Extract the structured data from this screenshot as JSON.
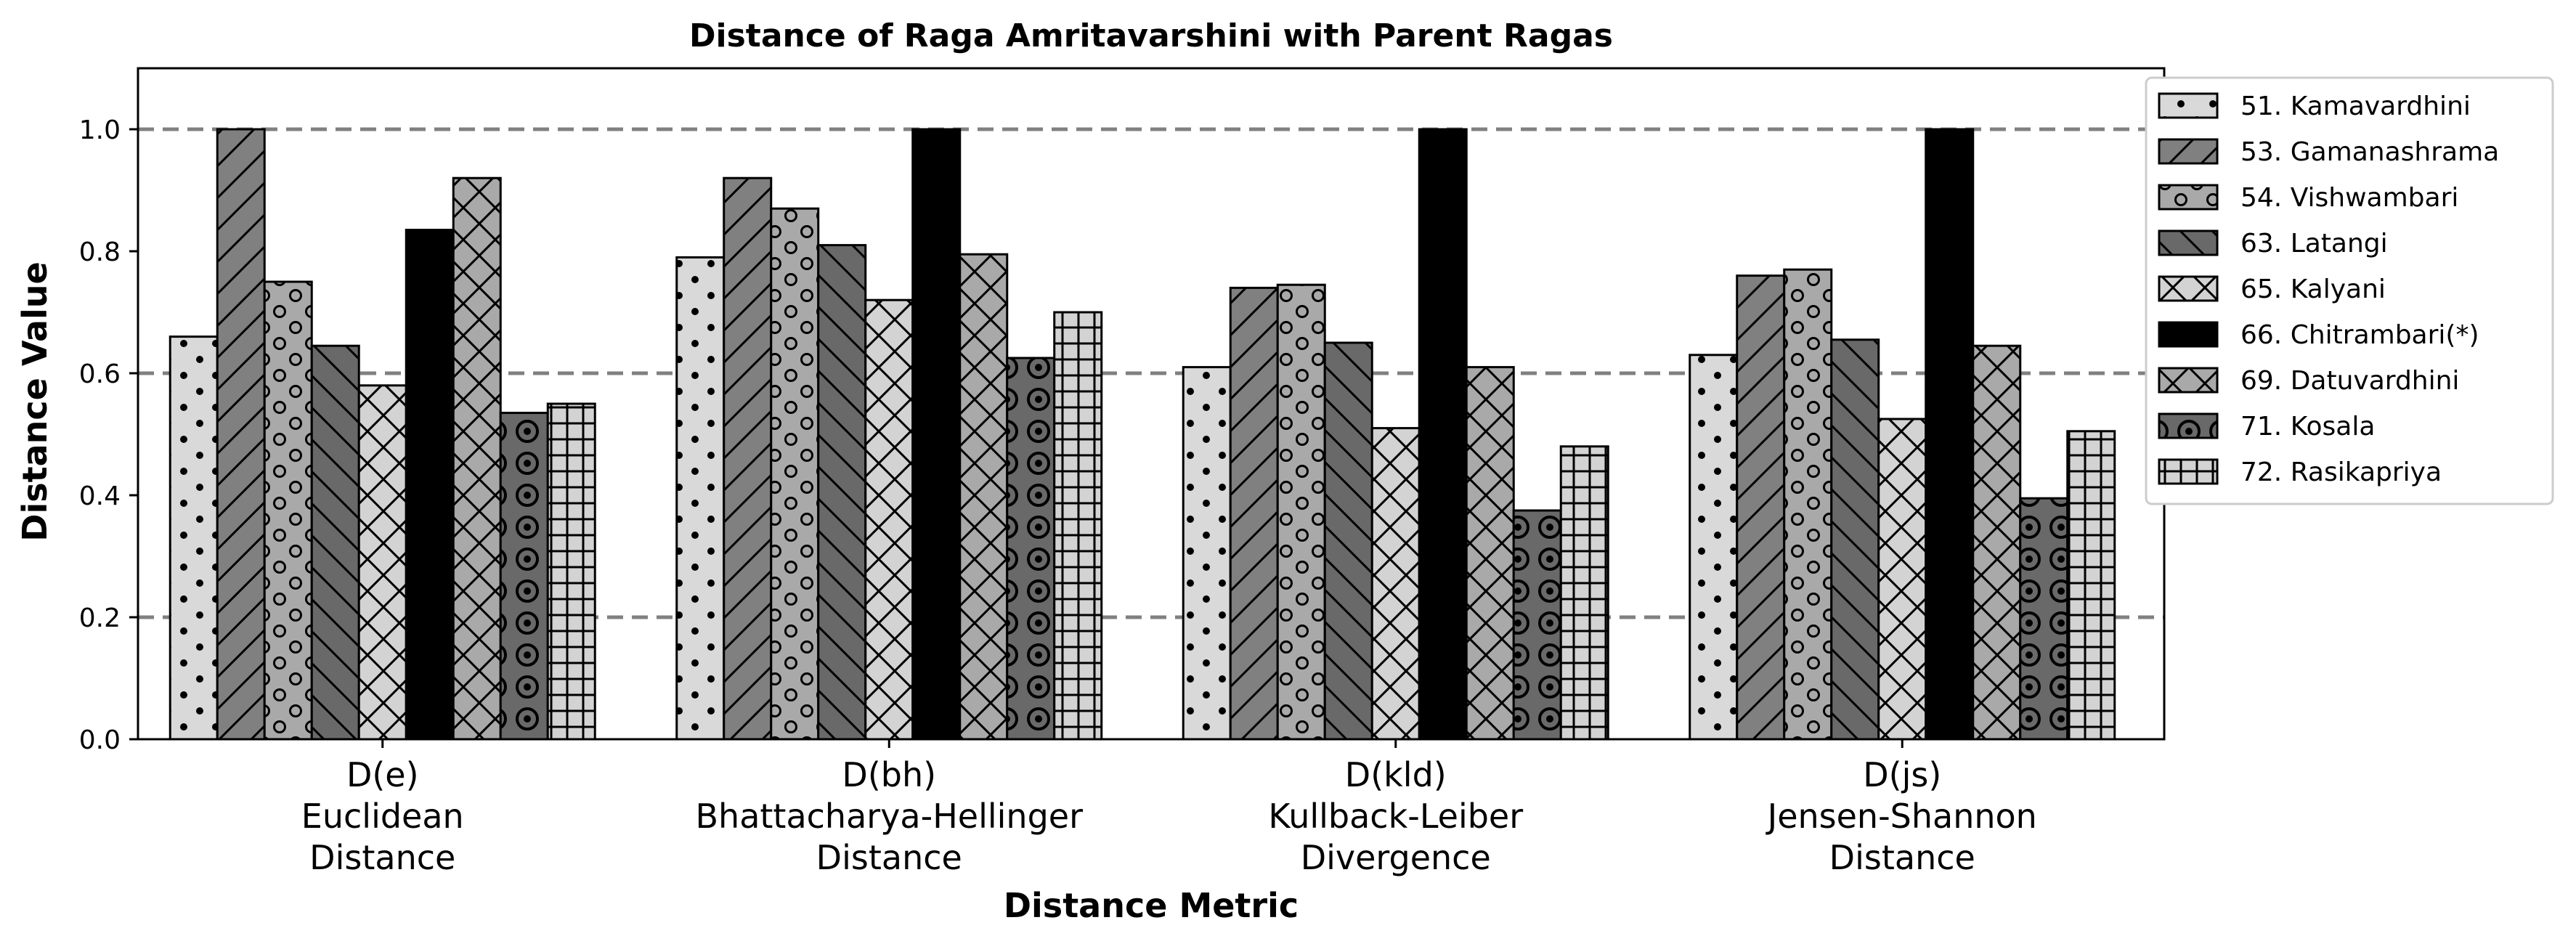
{
  "chart_data": {
    "type": "bar",
    "title": "Distance of Raga Amritavarshini with Parent Ragas",
    "xlabel": "Distance Metric",
    "ylabel": "Distance Value",
    "ylim": [
      0,
      1.1
    ],
    "yticks": [
      "0.0",
      "0.2",
      "0.4",
      "0.6",
      "0.8",
      "1.0"
    ],
    "gridlines": [
      0.2,
      0.6,
      1.0
    ],
    "legend_position": "top-right, outside plot",
    "categories": [
      [
        "D(e)",
        "Euclidean",
        "Distance"
      ],
      [
        "D(bh)",
        "Bhattacharya-Hellinger",
        "Distance"
      ],
      [
        "D(kld)",
        "Kullback-Leiber",
        "Divergence"
      ],
      [
        "D(js)",
        "Jensen-Shannon",
        "Distance"
      ]
    ],
    "series": [
      {
        "name": "51. Kamavardhini",
        "pattern": "dots",
        "color": "#d9d9d9",
        "values": [
          0.66,
          0.79,
          0.61,
          0.63
        ]
      },
      {
        "name": "53. Gamanashrama",
        "pattern": "diag-up",
        "color": "#808080",
        "values": [
          1.0,
          0.92,
          0.74,
          0.76
        ]
      },
      {
        "name": "54. Vishwambari",
        "pattern": "rings",
        "color": "#a9a9a9",
        "values": [
          0.75,
          0.87,
          0.745,
          0.77
        ]
      },
      {
        "name": "63. Latangi",
        "pattern": "diag-down",
        "color": "#696969",
        "values": [
          0.645,
          0.81,
          0.65,
          0.655
        ]
      },
      {
        "name": "65. Kalyani",
        "pattern": "cross-x",
        "color": "#d3d3d3",
        "values": [
          0.58,
          0.72,
          0.51,
          0.525
        ]
      },
      {
        "name": "66. Chitrambari(*)",
        "pattern": "solid",
        "color": "#000000",
        "values": [
          0.835,
          1.0,
          1.0,
          1.0
        ]
      },
      {
        "name": "69. Datuvardhini",
        "pattern": "cross-x",
        "color": "#a9a9a9",
        "values": [
          0.92,
          0.795,
          0.61,
          0.645
        ]
      },
      {
        "name": "71. Kosala",
        "pattern": "target",
        "color": "#696969",
        "values": [
          0.535,
          0.625,
          0.375,
          0.395
        ]
      },
      {
        "name": "72. Rasikapriya",
        "pattern": "grid",
        "color": "#d3d3d3",
        "values": [
          0.55,
          0.7,
          0.48,
          0.505
        ]
      }
    ]
  }
}
